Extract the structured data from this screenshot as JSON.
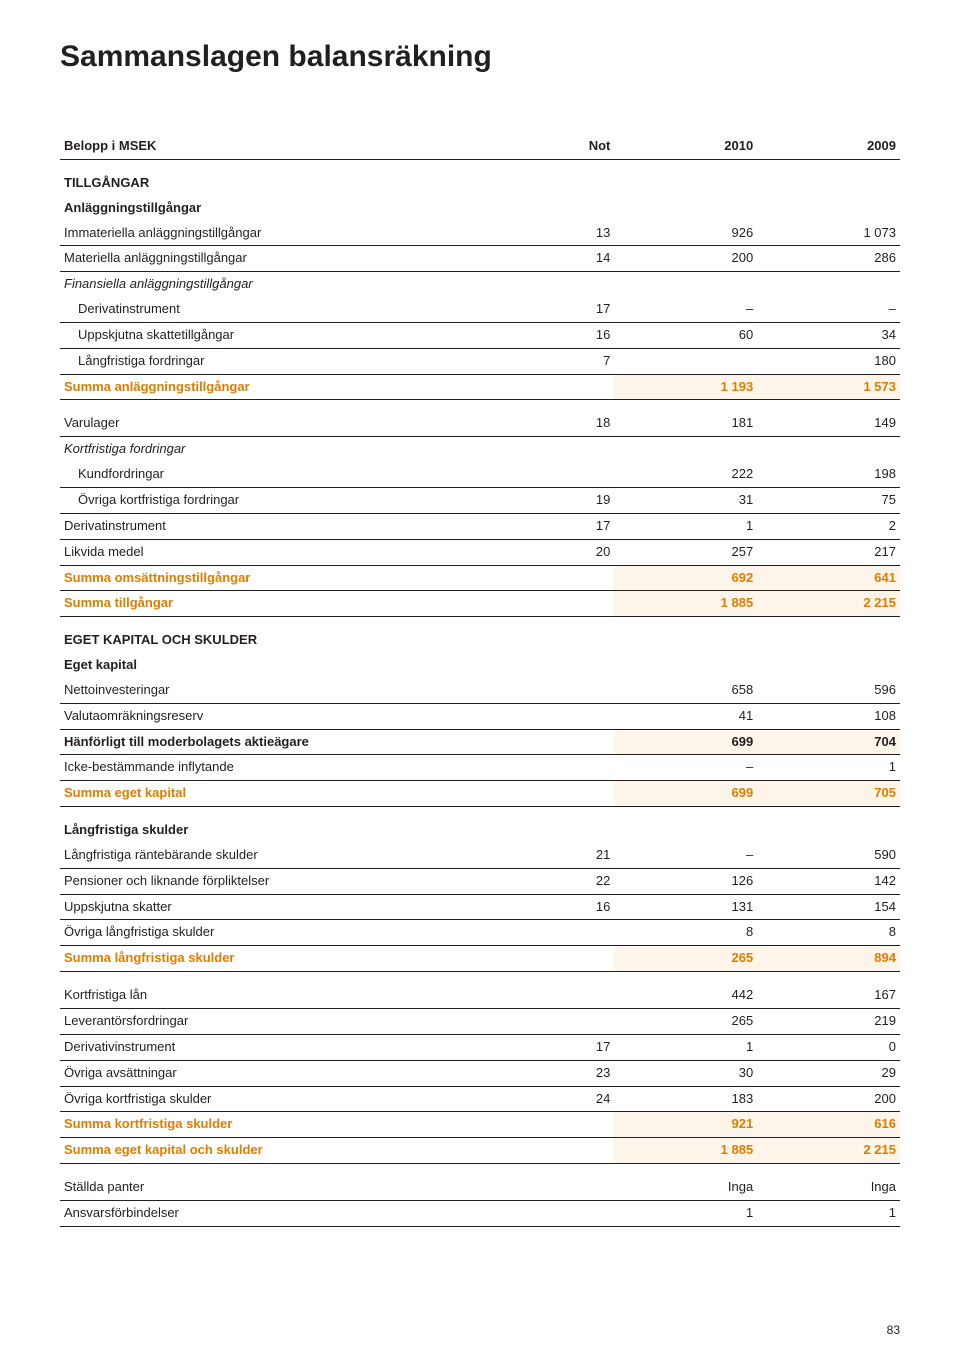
{
  "meta": {
    "page_number": "83",
    "title": "Sammanslagen balansräkning",
    "accent_color": "#e07c00",
    "stripe_color": "#fdf5e9",
    "text_color": "#231f20"
  },
  "header": {
    "col0": "Belopp i MSEK",
    "col1": "Not",
    "col2": "2010",
    "col3": "2009"
  },
  "rows": [
    {
      "type": "section",
      "label": "TILLGÅNGAR"
    },
    {
      "type": "subhdr",
      "label": "Anläggningstillgångar"
    },
    {
      "type": "data",
      "rule": true,
      "label": "Immateriella anläggningstillgångar",
      "not": "13",
      "y1": "926",
      "y2": "1 073"
    },
    {
      "type": "data",
      "rule": true,
      "label": "Materiella anläggningstillgångar",
      "not": "14",
      "y1": "200",
      "y2": "286"
    },
    {
      "type": "italic",
      "label": "Finansiella anläggningstillgångar"
    },
    {
      "type": "data",
      "indent": true,
      "rule": true,
      "label": "Derivatinstrument",
      "not": "17",
      "y1": "–",
      "y2": "–"
    },
    {
      "type": "data",
      "indent": true,
      "rule": true,
      "label": "Uppskjutna skattetillgångar",
      "not": "16",
      "y1": "60",
      "y2": "34"
    },
    {
      "type": "data",
      "indent": true,
      "rule": true,
      "label": "Långfristiga fordringar",
      "not": "7",
      "y1": "",
      "y2": "180"
    },
    {
      "type": "sum",
      "rule": true,
      "stripe": true,
      "label": "Summa anläggningstillgångar",
      "y1": "1 193",
      "y2": "1 573"
    },
    {
      "type": "data",
      "gap": true,
      "rule": true,
      "label": "Varulager",
      "not": "18",
      "y1": "181",
      "y2": "149"
    },
    {
      "type": "italic",
      "label": "Kortfristiga fordringar"
    },
    {
      "type": "data",
      "indent": true,
      "rule": true,
      "label": "Kundfordringar",
      "y1": "222",
      "y2": "198"
    },
    {
      "type": "data",
      "indent": true,
      "rule": true,
      "label": "Övriga kortfristiga fordringar",
      "not": "19",
      "y1": "31",
      "y2": "75"
    },
    {
      "type": "data",
      "rule": true,
      "label": "Derivatinstrument",
      "not": "17",
      "y1": "1",
      "y2": "2"
    },
    {
      "type": "data",
      "rule": true,
      "label": "Likvida medel",
      "not": "20",
      "y1": "257",
      "y2": "217"
    },
    {
      "type": "sum",
      "rule": true,
      "stripe": true,
      "label": "Summa omsättningstillgångar",
      "y1": "692",
      "y2": "641"
    },
    {
      "type": "sum",
      "rule": true,
      "stripe": true,
      "label": "Summa tillgångar",
      "y1": "1 885",
      "y2": "2 215"
    },
    {
      "type": "section",
      "label": "EGET KAPITAL OCH SKULDER"
    },
    {
      "type": "subhdr",
      "label": "Eget kapital"
    },
    {
      "type": "data",
      "rule": true,
      "label": "Nettoinvesteringar",
      "y1": "658",
      "y2": "596"
    },
    {
      "type": "data",
      "rule": true,
      "label": "Valutaomräkningsreserv",
      "y1": "41",
      "y2": "108"
    },
    {
      "type": "subhdr",
      "rule": true,
      "stripe": true,
      "label": "Hänförligt till moderbolagets aktieägare",
      "y1": "699",
      "y2": "704"
    },
    {
      "type": "data",
      "rule": true,
      "label": "Icke-bestämmande inflytande",
      "y1": "–",
      "y2": "1"
    },
    {
      "type": "sum",
      "rule": true,
      "stripe": true,
      "label": "Summa eget kapital",
      "y1": "699",
      "y2": "705"
    },
    {
      "type": "subhdr",
      "gap": true,
      "label": "Långfristiga skulder"
    },
    {
      "type": "data",
      "rule": true,
      "label": "Långfristiga räntebärande skulder",
      "not": "21",
      "y1": "–",
      "y2": "590"
    },
    {
      "type": "data",
      "rule": true,
      "label": "Pensioner och liknande förpliktelser",
      "not": "22",
      "y1": "126",
      "y2": "142"
    },
    {
      "type": "data",
      "rule": true,
      "label": "Uppskjutna skatter",
      "not": "16",
      "y1": "131",
      "y2": "154"
    },
    {
      "type": "data",
      "rule": true,
      "label": "Övriga långfristiga skulder",
      "y1": "8",
      "y2": "8"
    },
    {
      "type": "sum",
      "rule": true,
      "stripe": true,
      "label": "Summa långfristiga skulder",
      "y1": "265",
      "y2": "894"
    },
    {
      "type": "data",
      "gap": true,
      "rule": true,
      "label": "Kortfristiga lån",
      "y1": "442",
      "y2": "167"
    },
    {
      "type": "data",
      "rule": true,
      "label": "Leverantörsfordringar",
      "y1": "265",
      "y2": "219"
    },
    {
      "type": "data",
      "rule": true,
      "label": "Derivativinstrument",
      "not": "17",
      "y1": "1",
      "y2": "0"
    },
    {
      "type": "data",
      "rule": true,
      "label": "Övriga avsättningar",
      "not": "23",
      "y1": "30",
      "y2": "29"
    },
    {
      "type": "data",
      "rule": true,
      "label": "Övriga kortfristiga skulder",
      "not": "24",
      "y1": "183",
      "y2": "200"
    },
    {
      "type": "sum",
      "rule": true,
      "stripe": true,
      "label": "Summa kortfristiga skulder",
      "y1": "921",
      "y2": "616"
    },
    {
      "type": "sum",
      "rule": true,
      "stripe": true,
      "label": "Summa eget kapital och skulder",
      "y1": "1 885",
      "y2": "2 215"
    },
    {
      "type": "data",
      "gap": true,
      "rule": true,
      "label": "Ställda panter",
      "y1": "Inga",
      "y2": "Inga"
    },
    {
      "type": "data",
      "rule": true,
      "label": "Ansvarsförbindelser",
      "y1": "1",
      "y2": "1"
    }
  ]
}
